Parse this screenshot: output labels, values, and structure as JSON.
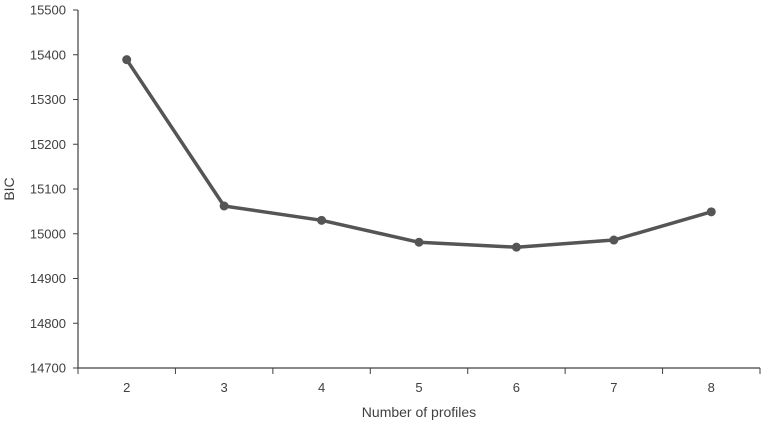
{
  "chart_data": {
    "type": "line",
    "title": "",
    "xlabel": "Number of profiles",
    "ylabel": "BIC",
    "categories": [
      "2",
      "3",
      "4",
      "5",
      "6",
      "7",
      "8"
    ],
    "series": [
      {
        "values": [
          15389,
          15062,
          15030,
          14981,
          14970,
          14986,
          15049
        ]
      }
    ],
    "ylim": [
      14700,
      15500
    ],
    "yticks": [
      "14700",
      "14800",
      "14900",
      "15000",
      "15100",
      "15200",
      "15300",
      "15400",
      "15500"
    ],
    "grid": false,
    "legend": "none",
    "line_color": "#555555"
  }
}
